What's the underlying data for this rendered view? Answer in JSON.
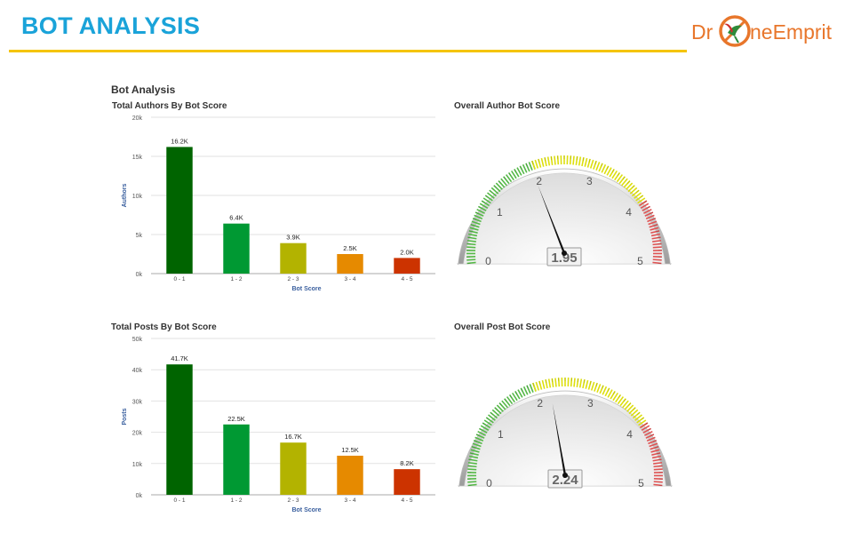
{
  "header": {
    "title": "BOT ANALYSIS"
  },
  "logo": {
    "part_a": "Dr",
    "part_b": "neEmprit"
  },
  "section": {
    "title": "Bot Analysis"
  },
  "colors": {
    "bins": [
      "#006400",
      "#009933",
      "#b3b300",
      "#e68a00",
      "#cc3300"
    ],
    "accent": "#1aa3d9",
    "rule": "#f5c400"
  },
  "chart_data": [
    {
      "type": "bar",
      "title": "Total Authors By Bot Score",
      "xlabel": "Bot Score",
      "ylabel": "Authors",
      "categories": [
        "0 - 1",
        "1 - 2",
        "2 - 3",
        "3 - 4",
        "4 - 5"
      ],
      "values": [
        16200,
        6400,
        3900,
        2500,
        2000
      ],
      "data_labels": [
        "16.2K",
        "6.4K",
        "3.9K",
        "2.5K",
        "2.0K"
      ],
      "ylim": [
        0,
        20000
      ],
      "yticks": [
        0,
        5000,
        10000,
        15000,
        20000
      ],
      "ytick_labels": [
        "0k",
        "5k",
        "10k",
        "15k",
        "20k"
      ],
      "grid": true
    },
    {
      "type": "bar",
      "title": "Total Posts By Bot Score",
      "xlabel": "Bot Score",
      "ylabel": "Posts",
      "categories": [
        "0 - 1",
        "1 - 2",
        "2 - 3",
        "3 - 4",
        "4 - 5"
      ],
      "values": [
        41700,
        22500,
        16700,
        12500,
        8200
      ],
      "data_labels": [
        "41.7K",
        "22.5K",
        "16.7K",
        "12.5K",
        "8.2K"
      ],
      "ylim": [
        0,
        50000
      ],
      "yticks": [
        0,
        10000,
        20000,
        30000,
        40000,
        50000
      ],
      "ytick_labels": [
        "0k",
        "10k",
        "20k",
        "30k",
        "40k",
        "50k"
      ],
      "grid": true
    },
    {
      "type": "gauge",
      "title": "Overall Author Bot Score",
      "value": 1.95,
      "value_label": "1.95",
      "range": [
        0,
        5
      ],
      "tick_labels": [
        "0",
        "1",
        "2",
        "3",
        "4",
        "5"
      ],
      "bands": [
        {
          "from": 0,
          "to": 2,
          "color": "#55b947"
        },
        {
          "from": 2,
          "to": 4,
          "color": "#dddf0d"
        },
        {
          "from": 4,
          "to": 5,
          "color": "#df5353"
        }
      ]
    },
    {
      "type": "gauge",
      "title": "Overall Post Bot Score",
      "value": 2.24,
      "value_label": "2.24",
      "range": [
        0,
        5
      ],
      "tick_labels": [
        "0",
        "1",
        "2",
        "3",
        "4",
        "5"
      ],
      "bands": [
        {
          "from": 0,
          "to": 2,
          "color": "#55b947"
        },
        {
          "from": 2,
          "to": 4,
          "color": "#dddf0d"
        },
        {
          "from": 4,
          "to": 5,
          "color": "#df5353"
        }
      ]
    }
  ]
}
